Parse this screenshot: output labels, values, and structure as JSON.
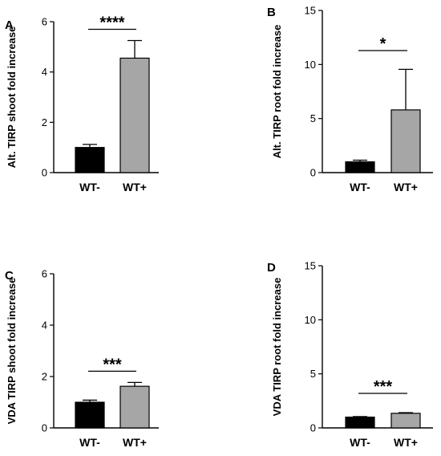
{
  "chart_data": [
    {
      "panel": "A",
      "type": "bar",
      "ylabel": "Alt. TIRP shoot fold increase",
      "categories": [
        "WT-",
        "WT+"
      ],
      "values": [
        1.0,
        4.55
      ],
      "errors": [
        0.12,
        0.7
      ],
      "colors": [
        "#000000",
        "#a6a6a6"
      ],
      "ylim": [
        0,
        6
      ],
      "yticks": [
        "0",
        "2",
        "4",
        "6"
      ],
      "significance": "****"
    },
    {
      "panel": "B",
      "type": "bar",
      "ylabel": "Alt. TIRP root fold increase",
      "categories": [
        "WT-",
        "WT+"
      ],
      "values": [
        1.0,
        5.8
      ],
      "errors": [
        0.15,
        3.75
      ],
      "colors": [
        "#000000",
        "#a6a6a6"
      ],
      "ylim": [
        0,
        15
      ],
      "yticks": [
        "0",
        "5",
        "10",
        "15"
      ],
      "significance": "*"
    },
    {
      "panel": "C",
      "type": "bar",
      "ylabel": "VDA TIRP shoot fold increase",
      "categories": [
        "WT-",
        "WT+"
      ],
      "values": [
        1.0,
        1.62
      ],
      "errors": [
        0.08,
        0.15
      ],
      "colors": [
        "#000000",
        "#a6a6a6"
      ],
      "ylim": [
        0,
        6
      ],
      "yticks": [
        "0",
        "2",
        "4",
        "6"
      ],
      "significance": "***"
    },
    {
      "panel": "D",
      "type": "bar",
      "ylabel": "VDA TIRP root fold increase",
      "categories": [
        "WT-",
        "WT+"
      ],
      "values": [
        1.0,
        1.35
      ],
      "errors": [
        0.05,
        0.06
      ],
      "colors": [
        "#000000",
        "#a6a6a6"
      ],
      "ylim": [
        0,
        15
      ],
      "yticks": [
        "0",
        "5",
        "10",
        "15"
      ],
      "significance": "***"
    }
  ]
}
